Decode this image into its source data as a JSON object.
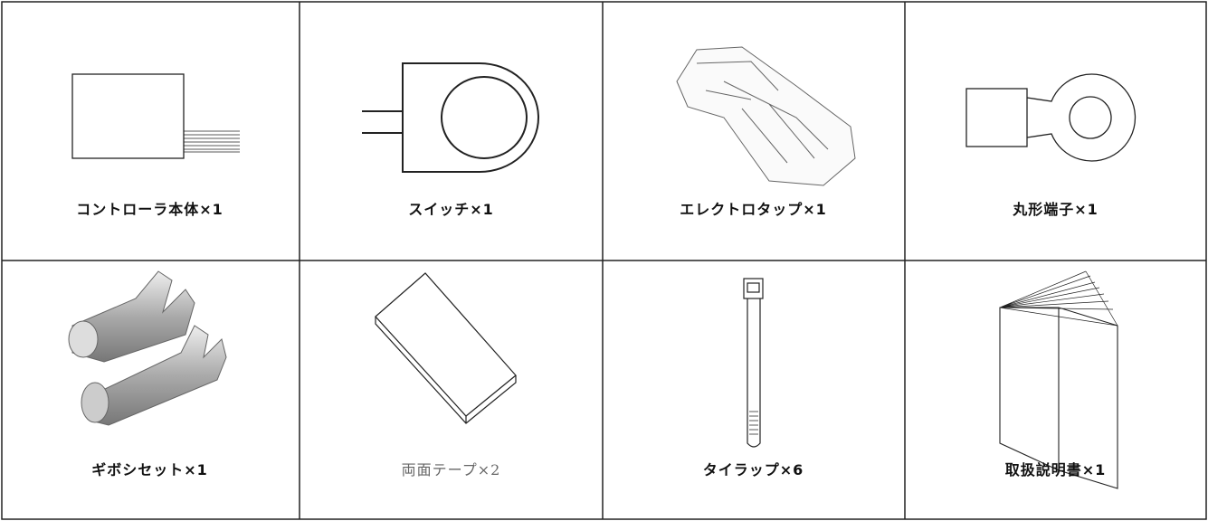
{
  "items": [
    {
      "label": "コントローラ本体×1"
    },
    {
      "label": "スイッチ×1"
    },
    {
      "label": "エレクトロタップ×1"
    },
    {
      "label": "丸形端子×1"
    },
    {
      "label": "ギボシセット×1"
    },
    {
      "label": "両面テープ×2"
    },
    {
      "label": "タイラップ×6"
    },
    {
      "label": "取扱説明書×1"
    }
  ]
}
